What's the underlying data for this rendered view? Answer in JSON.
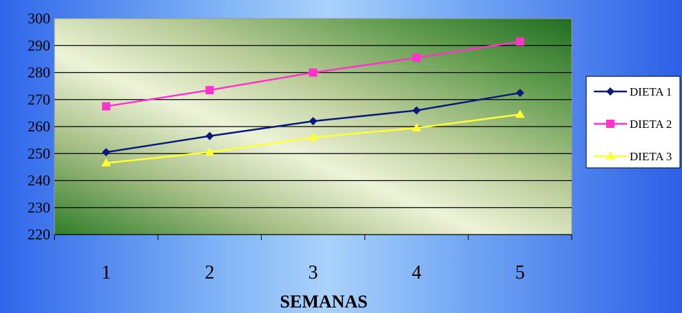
{
  "chart_data": {
    "type": "line",
    "title": "",
    "xlabel": "SEMANAS",
    "ylabel": "",
    "categories": [
      "1",
      "2",
      "3",
      "4",
      "5"
    ],
    "ylim": [
      220,
      300
    ],
    "yticks": [
      "220",
      "230",
      "240",
      "250",
      "260",
      "270",
      "280",
      "290",
      "300"
    ],
    "grid": true,
    "legend_position": "right",
    "series": [
      {
        "name": "DIETA 1",
        "values": [
          250.5,
          256.5,
          262,
          266,
          272.5
        ],
        "color": "#0a1a78",
        "marker": "diamond"
      },
      {
        "name": "DIETA 2",
        "values": [
          267.5,
          273.5,
          280,
          285.5,
          291.5
        ],
        "color": "#ff33cc",
        "marker": "square"
      },
      {
        "name": "DIETA 3",
        "values": [
          246.5,
          250.5,
          256,
          259.5,
          264.5
        ],
        "color": "#ffff33",
        "marker": "triangle"
      }
    ]
  }
}
